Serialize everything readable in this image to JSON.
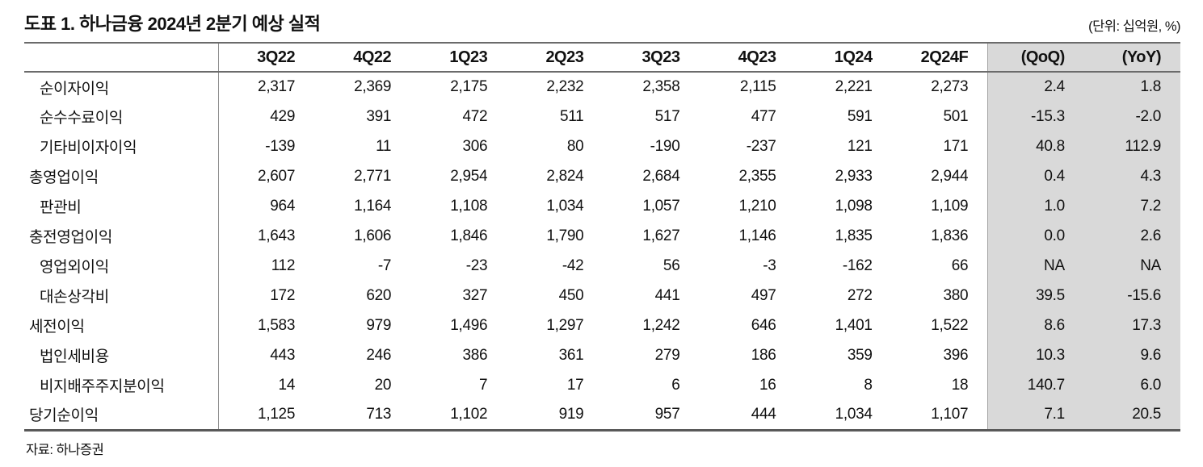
{
  "page": {
    "title": "도표 1. 하나금융 2024년 2분기 예상 실적",
    "unit_label": "(단위: 십억원, %)",
    "source": "자료: 하나증권"
  },
  "colors": {
    "highlight_bg": "#d9d9d9",
    "border_dark": "#6b6b6b",
    "border_bottom": "#595959",
    "divider": "#8c8c8c",
    "text": "#111111"
  },
  "chart_data": {
    "type": "table",
    "columns": [
      "",
      "3Q22",
      "4Q22",
      "1Q23",
      "2Q23",
      "3Q23",
      "4Q23",
      "1Q24",
      "2Q24F",
      "(QoQ)",
      "(YoY)"
    ],
    "highlight_columns": [
      "(QoQ)",
      "(YoY)"
    ],
    "rows": [
      {
        "label": "순이자이익",
        "indent": true,
        "values": [
          "2,317",
          "2,369",
          "2,175",
          "2,232",
          "2,358",
          "2,115",
          "2,221",
          "2,273",
          "2.4",
          "1.8"
        ]
      },
      {
        "label": "순수수료이익",
        "indent": true,
        "values": [
          "429",
          "391",
          "472",
          "511",
          "517",
          "477",
          "591",
          "501",
          "-15.3",
          "-2.0"
        ]
      },
      {
        "label": "기타비이자이익",
        "indent": true,
        "values": [
          "-139",
          "11",
          "306",
          "80",
          "-190",
          "-237",
          "121",
          "171",
          "40.8",
          "112.9"
        ]
      },
      {
        "label": "총영업이익",
        "indent": false,
        "values": [
          "2,607",
          "2,771",
          "2,954",
          "2,824",
          "2,684",
          "2,355",
          "2,933",
          "2,944",
          "0.4",
          "4.3"
        ]
      },
      {
        "label": "판관비",
        "indent": true,
        "values": [
          "964",
          "1,164",
          "1,108",
          "1,034",
          "1,057",
          "1,210",
          "1,098",
          "1,109",
          "1.0",
          "7.2"
        ]
      },
      {
        "label": "충전영업이익",
        "indent": false,
        "values": [
          "1,643",
          "1,606",
          "1,846",
          "1,790",
          "1,627",
          "1,146",
          "1,835",
          "1,836",
          "0.0",
          "2.6"
        ]
      },
      {
        "label": "영업외이익",
        "indent": true,
        "values": [
          "112",
          "-7",
          "-23",
          "-42",
          "56",
          "-3",
          "-162",
          "66",
          "NA",
          "NA"
        ]
      },
      {
        "label": "대손상각비",
        "indent": true,
        "values": [
          "172",
          "620",
          "327",
          "450",
          "441",
          "497",
          "272",
          "380",
          "39.5",
          "-15.6"
        ]
      },
      {
        "label": "세전이익",
        "indent": false,
        "values": [
          "1,583",
          "979",
          "1,496",
          "1,297",
          "1,242",
          "646",
          "1,401",
          "1,522",
          "8.6",
          "17.3"
        ]
      },
      {
        "label": "법인세비용",
        "indent": true,
        "values": [
          "443",
          "246",
          "386",
          "361",
          "279",
          "186",
          "359",
          "396",
          "10.3",
          "9.6"
        ]
      },
      {
        "label": "비지배주주지분이익",
        "indent": true,
        "values": [
          "14",
          "20",
          "7",
          "17",
          "6",
          "16",
          "8",
          "18",
          "140.7",
          "6.0"
        ]
      },
      {
        "label": "당기순이익",
        "indent": false,
        "values": [
          "1,125",
          "713",
          "1,102",
          "919",
          "957",
          "444",
          "1,034",
          "1,107",
          "7.1",
          "20.5"
        ]
      }
    ]
  }
}
